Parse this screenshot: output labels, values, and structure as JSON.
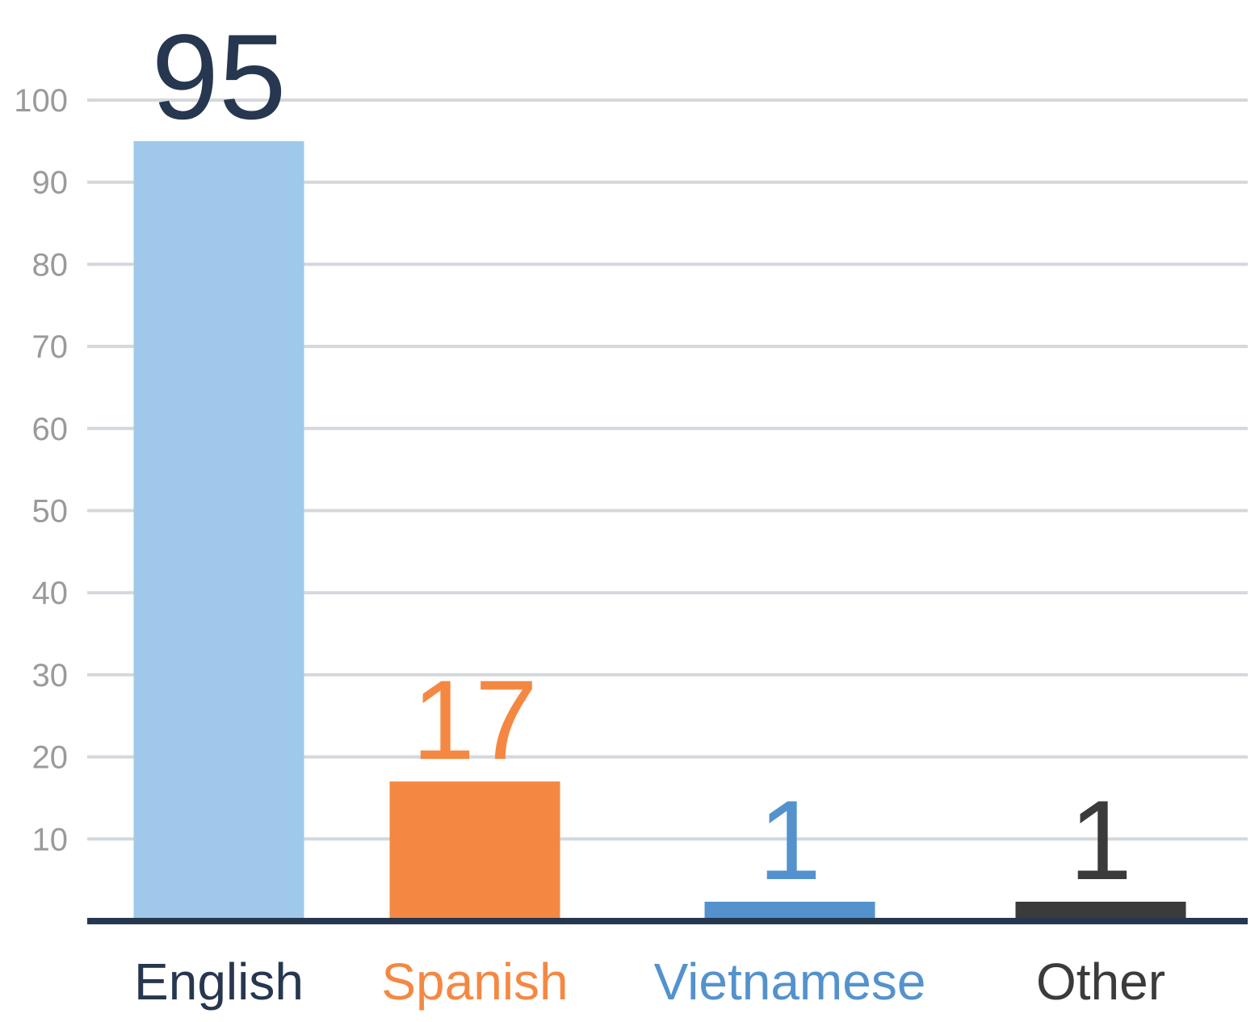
{
  "chart_data": {
    "type": "bar",
    "categories": [
      "English",
      "Spanish",
      "Vietnamese",
      "Other"
    ],
    "values": [
      95,
      17,
      1,
      1
    ],
    "data_labels": [
      "95",
      "17",
      "1",
      "1"
    ],
    "title": "",
    "xlabel": "",
    "ylabel": "",
    "ylim": [
      0,
      100
    ],
    "yticks": [
      10,
      20,
      30,
      40,
      50,
      60,
      70,
      80,
      90,
      100
    ],
    "ytick_labels": [
      "10",
      "20",
      "30",
      "40",
      "50",
      "60",
      "70",
      "80",
      "90",
      "100"
    ],
    "grid": true,
    "legend": "none",
    "colors": {
      "bars": [
        "#9fc8ea",
        "#f48843",
        "#5392cd",
        "#3b3b3b"
      ],
      "labels": [
        "#26374f",
        "#f48843",
        "#5392cd",
        "#3b3b3b"
      ],
      "grid": "#d4d8dd",
      "axis": "#26374f",
      "tick_text": "#9a9a9a"
    }
  }
}
